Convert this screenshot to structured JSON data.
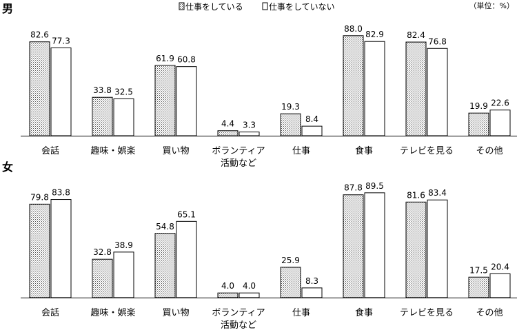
{
  "unit_label": "（単位：%）",
  "legend": {
    "working": "仕事をしている",
    "not_working": "仕事をしていない"
  },
  "chart_data": [
    {
      "type": "bar",
      "title": "男",
      "categories": [
        "会話",
        "趣味・娯楽",
        "買い物",
        [
          "ボランティア",
          "活動など"
        ],
        "仕事",
        "食事",
        "テレビを見る",
        "その他"
      ],
      "series": [
        {
          "name": "仕事をしている",
          "values": [
            82.6,
            33.8,
            61.9,
            4.4,
            19.3,
            88.0,
            82.4,
            19.9
          ]
        },
        {
          "name": "仕事をしていない",
          "values": [
            77.3,
            32.5,
            60.8,
            3.3,
            8.4,
            82.9,
            76.8,
            22.6
          ]
        }
      ],
      "ylim": [
        0,
        100
      ]
    },
    {
      "type": "bar",
      "title": "女",
      "categories": [
        "会話",
        "趣味・娯楽",
        "買い物",
        [
          "ボランティア",
          "活動など"
        ],
        "仕事",
        "食事",
        "テレビを見る",
        "その他"
      ],
      "series": [
        {
          "name": "仕事をしている",
          "values": [
            79.8,
            32.8,
            54.8,
            4.0,
            25.9,
            87.8,
            81.6,
            17.5
          ]
        },
        {
          "name": "仕事をしていない",
          "values": [
            83.8,
            38.9,
            65.1,
            4.0,
            8.3,
            89.5,
            83.4,
            20.4
          ]
        }
      ],
      "ylim": [
        0,
        100
      ]
    }
  ]
}
